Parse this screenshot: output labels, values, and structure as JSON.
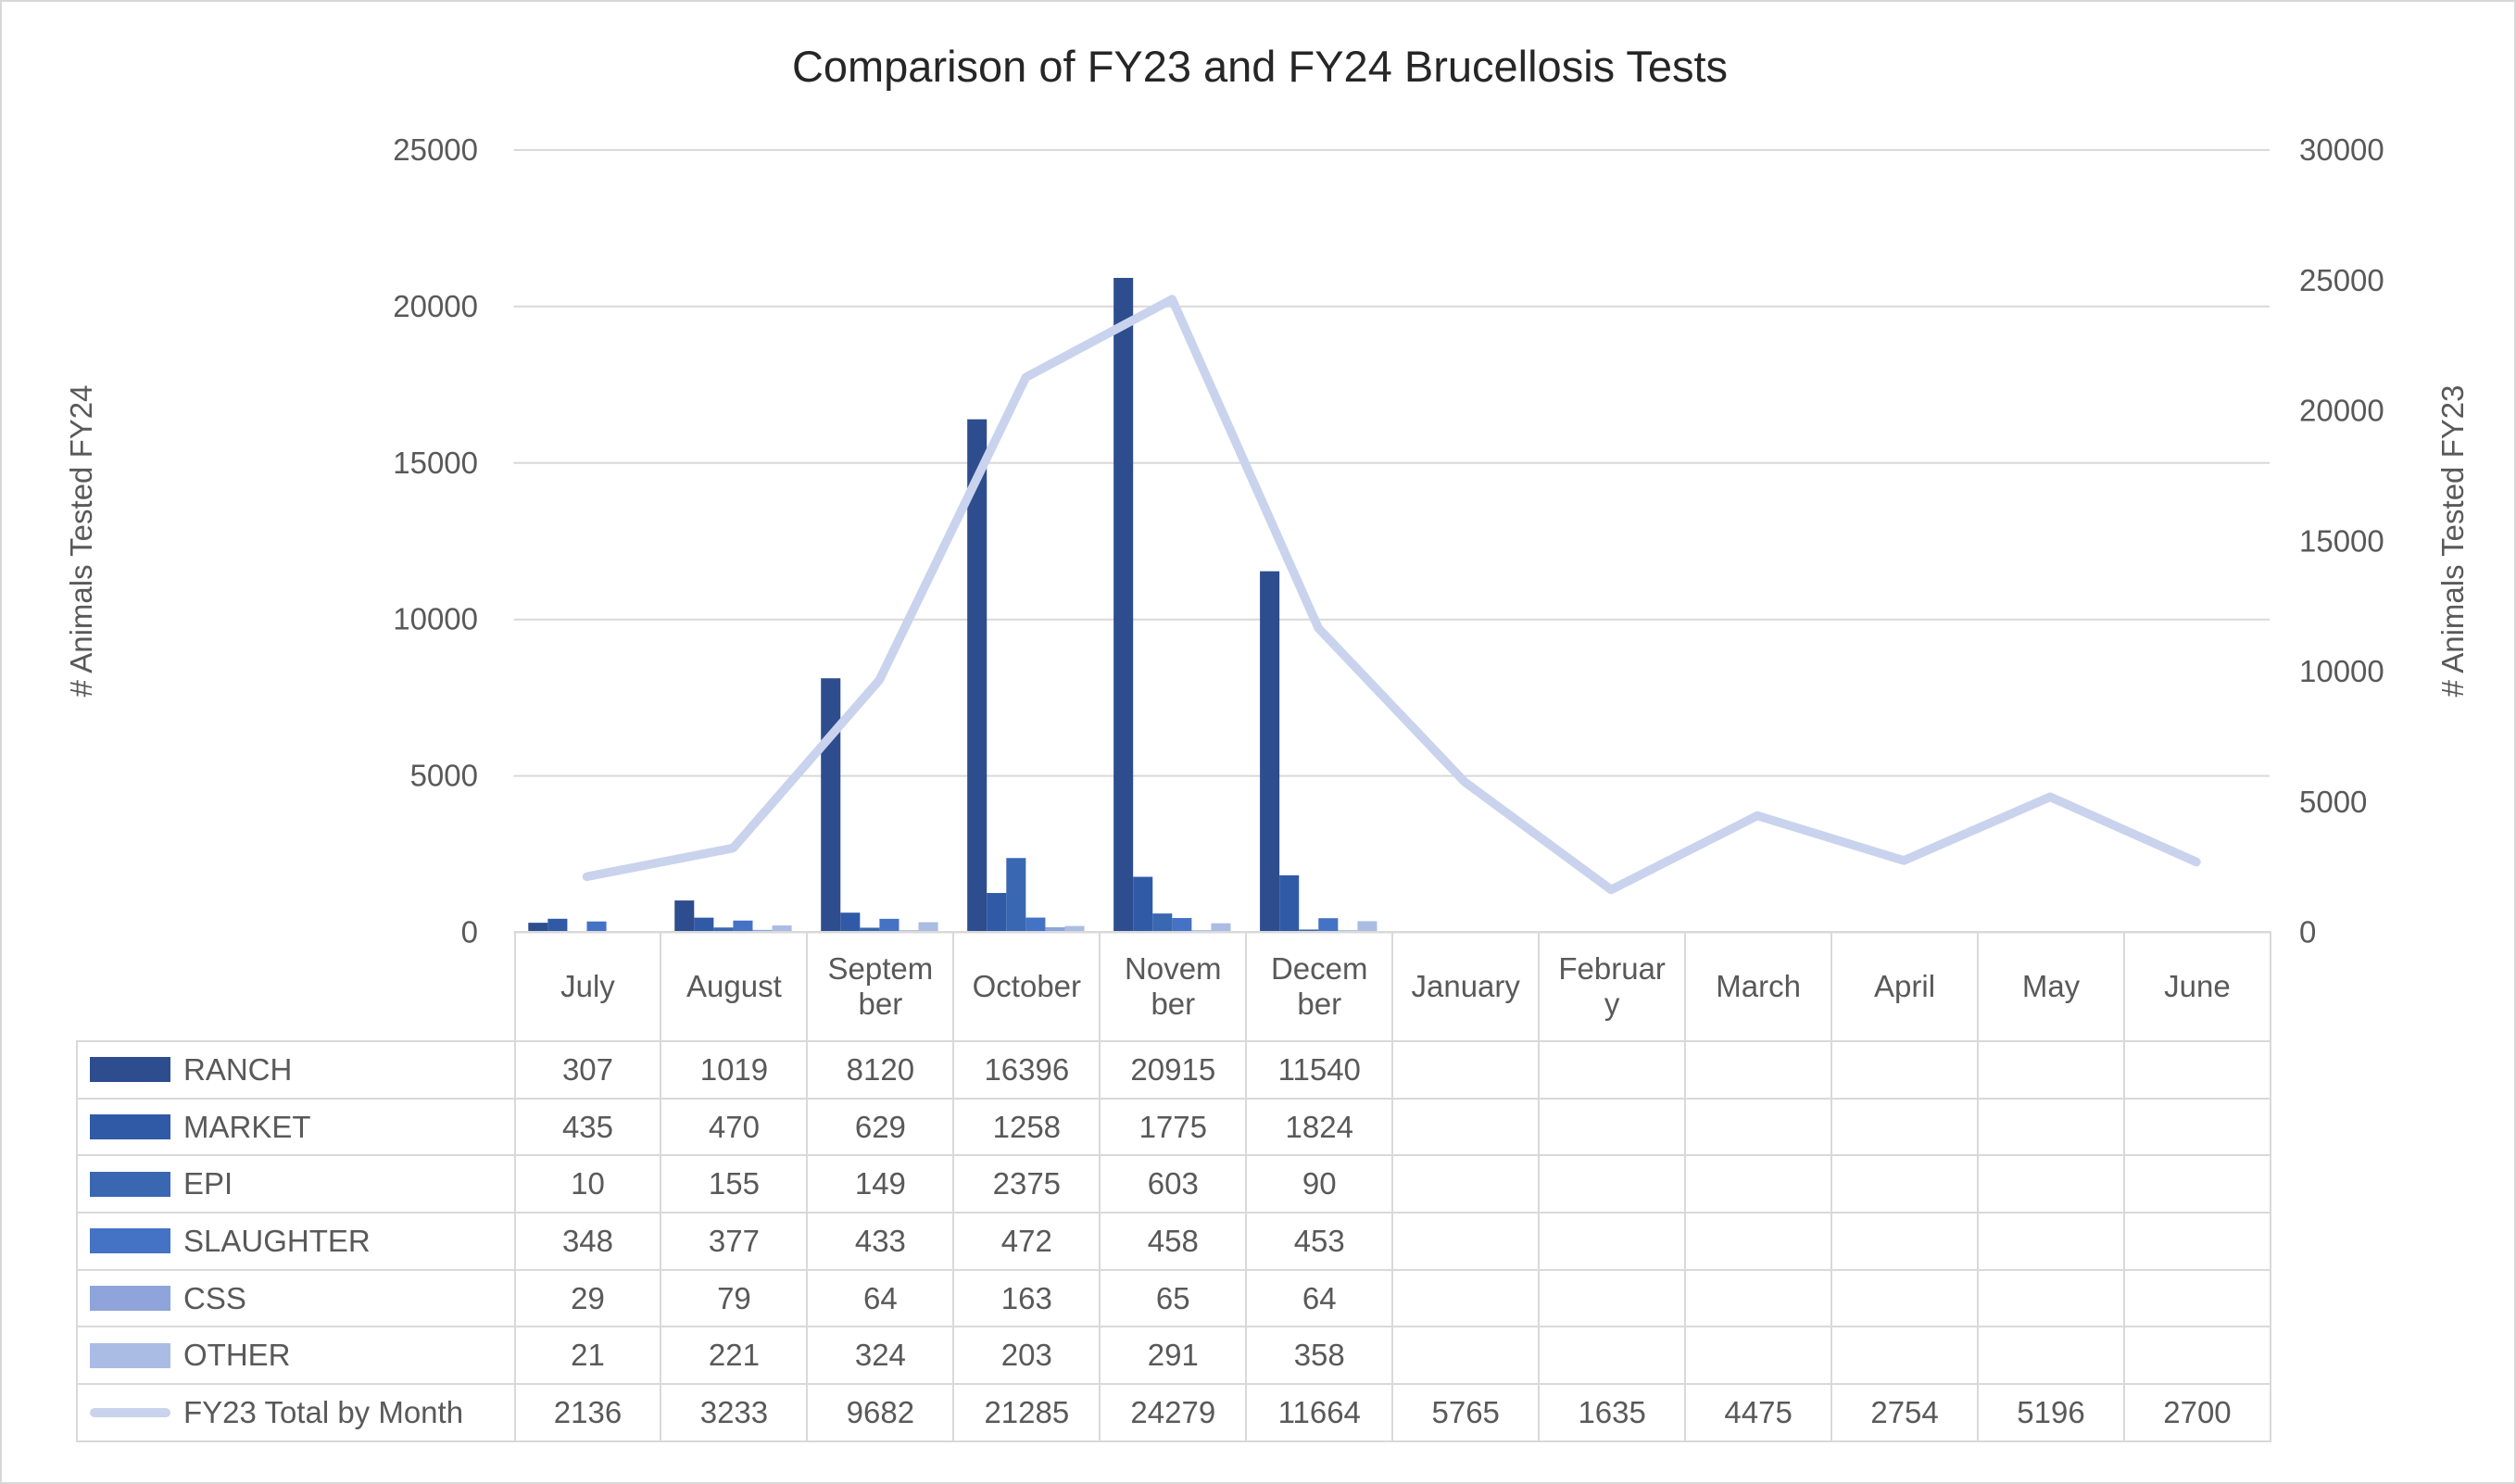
{
  "chart_data": {
    "type": "combo_bar_line",
    "title": "Comparison of FY23 and FY24 Brucellosis Tests",
    "categories": [
      "July",
      "August",
      "September",
      "October",
      "November",
      "December",
      "January",
      "February",
      "March",
      "April",
      "May",
      "June"
    ],
    "category_label_lines": [
      [
        "July"
      ],
      [
        "August"
      ],
      [
        "Septem",
        "ber"
      ],
      [
        "October"
      ],
      [
        "Novem",
        "ber"
      ],
      [
        "Decem",
        "ber"
      ],
      [
        "January"
      ],
      [
        "Februar",
        "y"
      ],
      [
        "March"
      ],
      [
        "April"
      ],
      [
        "May"
      ],
      [
        "June"
      ]
    ],
    "left_axis": {
      "title": "# Animals Tested FY24",
      "min": 0,
      "max": 25000,
      "ticks": [
        0,
        5000,
        10000,
        15000,
        20000,
        25000
      ]
    },
    "right_axis": {
      "title": "# Animals Tested FY23",
      "min": 0,
      "max": 30000,
      "ticks": [
        0,
        5000,
        10000,
        15000,
        20000,
        25000,
        30000
      ]
    },
    "grid": true,
    "legend_position": "table-left",
    "bar_series": [
      {
        "name": "RANCH",
        "color": "#2E4D8E",
        "values": [
          307,
          1019,
          8120,
          16396,
          20915,
          11540,
          null,
          null,
          null,
          null,
          null,
          null
        ]
      },
      {
        "name": "MARKET",
        "color": "#315AA6",
        "values": [
          435,
          470,
          629,
          1258,
          1775,
          1824,
          null,
          null,
          null,
          null,
          null,
          null
        ]
      },
      {
        "name": "EPI",
        "color": "#3A67B1",
        "values": [
          10,
          155,
          149,
          2375,
          603,
          90,
          null,
          null,
          null,
          null,
          null,
          null
        ]
      },
      {
        "name": "SLAUGHTER",
        "color": "#4472C4",
        "values": [
          348,
          377,
          433,
          472,
          458,
          453,
          null,
          null,
          null,
          null,
          null,
          null
        ]
      },
      {
        "name": "CSS",
        "color": "#8EA4DA",
        "values": [
          29,
          79,
          64,
          163,
          65,
          64,
          null,
          null,
          null,
          null,
          null,
          null
        ]
      },
      {
        "name": "OTHER",
        "color": "#ABBCE4",
        "values": [
          21,
          221,
          324,
          203,
          291,
          358,
          null,
          null,
          null,
          null,
          null,
          null
        ]
      }
    ],
    "line_series": {
      "name": "FY23 Total by Month",
      "color": "#C9D3ED",
      "axis": "right",
      "values": [
        2136,
        3233,
        9682,
        21285,
        24279,
        11664,
        5765,
        1635,
        4475,
        2754,
        5196,
        2700
      ]
    }
  },
  "colors": {
    "grid": "#D9D9D9",
    "axis_text": "#595959",
    "table_text": "#595959",
    "table_border": "#D9D9D9",
    "title_text": "#262626",
    "background": "#FFFFFF",
    "canvas_border": "#D8D8D8"
  }
}
